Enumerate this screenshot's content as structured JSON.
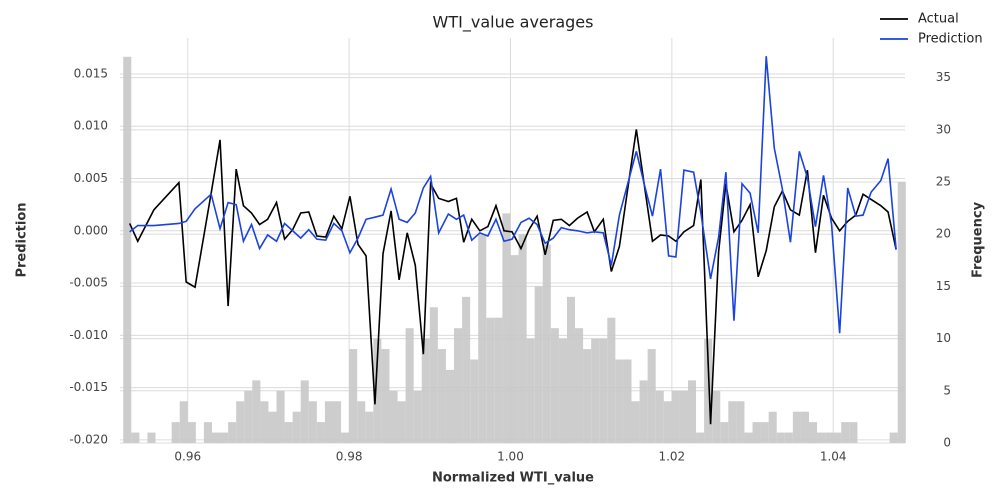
{
  "chart_data": [
    {
      "type": "histogram",
      "ylabel": "Frequency",
      "yaxis_side": "right",
      "color": "#c8c8c8",
      "grid": true,
      "xlim": [
        0.9516,
        1.0489
      ],
      "ylim": [
        0,
        38.8
      ],
      "yticks": [
        0,
        5,
        10,
        15,
        20,
        25,
        30,
        35
      ],
      "bins": [
        0.952,
        0.953,
        0.954,
        0.955,
        0.956,
        0.957,
        0.958,
        0.959,
        0.96,
        0.961,
        0.962,
        0.963,
        0.964,
        0.965,
        0.966,
        0.967,
        0.968,
        0.969,
        0.97,
        0.971,
        0.972,
        0.973,
        0.974,
        0.975,
        0.976,
        0.977,
        0.978,
        0.979,
        0.98,
        0.981,
        0.982,
        0.983,
        0.984,
        0.985,
        0.986,
        0.987,
        0.988,
        0.989,
        0.99,
        0.991,
        0.992,
        0.993,
        0.994,
        0.995,
        0.996,
        0.997,
        0.998,
        0.999,
        1.0,
        1.001,
        1.002,
        1.003,
        1.004,
        1.005,
        1.006,
        1.007,
        1.008,
        1.009,
        1.01,
        1.011,
        1.012,
        1.013,
        1.014,
        1.015,
        1.016,
        1.017,
        1.018,
        1.019,
        1.02,
        1.021,
        1.022,
        1.023,
        1.024,
        1.025,
        1.026,
        1.027,
        1.028,
        1.029,
        1.03,
        1.031,
        1.032,
        1.033,
        1.034,
        1.035,
        1.036,
        1.037,
        1.038,
        1.039,
        1.04,
        1.041,
        1.042,
        1.043,
        1.044,
        1.045,
        1.046,
        1.047,
        1.048,
        1.049
      ],
      "values": [
        37,
        1,
        0,
        1,
        0,
        0,
        2,
        4,
        2,
        0,
        2,
        1,
        1,
        2,
        4,
        5,
        6,
        4,
        3,
        5,
        2,
        3,
        6,
        4,
        2,
        4,
        4,
        1,
        9,
        4,
        3,
        10,
        9,
        5,
        4,
        11,
        5,
        10,
        13,
        9,
        7,
        11,
        14,
        8,
        20,
        12,
        12,
        22,
        18,
        20,
        10,
        15,
        19,
        11,
        10,
        14,
        11,
        9,
        10,
        10,
        12,
        8,
        8,
        4,
        6,
        9,
        5,
        4,
        5,
        5,
        6,
        1,
        10,
        5,
        2,
        4,
        4,
        1,
        2,
        2,
        3,
        1,
        1,
        3,
        3,
        2,
        1,
        1,
        1,
        2,
        2,
        0,
        0,
        0,
        0,
        1,
        25
      ]
    },
    {
      "type": "line",
      "title": "WTI_value averages",
      "xlabel": "Normalized WTI_value",
      "ylabel": "Prediction",
      "grid": true,
      "legend": "upper right",
      "xlim": [
        0.9516,
        1.0489
      ],
      "ylim": [
        -0.0203,
        0.01844
      ],
      "xticks": [
        0.96,
        0.98,
        {
          "value": 1.0,
          "label": "1.00"
        },
        1.02,
        1.04
      ],
      "yticks": [
        {
          "value": -0.02,
          "label": "-0.020"
        },
        {
          "value": -0.015,
          "label": "-0.015"
        },
        {
          "value": -0.01,
          "label": "-0.010"
        },
        {
          "value": -0.005,
          "label": "-0.005"
        },
        {
          "value": 0,
          "label": "0.000"
        },
        {
          "value": 0.005,
          "label": "0.005"
        },
        {
          "value": 0.01,
          "label": "0.010"
        },
        {
          "value": 0.015,
          "label": "0.015"
        }
      ],
      "x": [
        0.9528,
        0.9538,
        0.9558,
        0.9589,
        0.9598,
        0.9609,
        0.9629,
        0.964,
        0.965,
        0.966,
        0.9669,
        0.9679,
        0.9689,
        0.9699,
        0.971,
        0.972,
        0.973,
        0.974,
        0.975,
        0.976,
        0.9771,
        0.9781,
        0.9791,
        0.9801,
        0.9811,
        0.9821,
        0.9832,
        0.9842,
        0.9852,
        0.9862,
        0.9872,
        0.9882,
        0.9892,
        0.9901,
        0.9911,
        0.9923,
        0.9933,
        0.9942,
        0.9952,
        0.9962,
        0.9972,
        0.9982,
        0.9992,
        1.0002,
        1.0013,
        1.0023,
        1.0033,
        1.0043,
        1.0053,
        1.0063,
        1.0073,
        1.0083,
        1.0095,
        1.0104,
        1.0115,
        1.0125,
        1.0135,
        1.0156,
        1.0166,
        1.0176,
        1.0186,
        1.0196,
        1.0205,
        1.0215,
        1.0227,
        1.0236,
        1.0248,
        1.0258,
        1.0267,
        1.0277,
        1.0287,
        1.0297,
        1.0307,
        1.0317,
        1.0327,
        1.0337,
        1.0347,
        1.0358,
        1.0368,
        1.0378,
        1.0388,
        1.0398,
        1.0408,
        1.0418,
        1.0428,
        1.0437,
        1.0447,
        1.0459,
        1.0468,
        1.0478
      ],
      "series": [
        {
          "name": "Actual",
          "color": "#000000",
          "values": [
            0.0007,
            -0.001,
            0.002,
            0.0046,
            -0.0049,
            -0.0054,
            0.0036,
            0.0087,
            -0.0072,
            0.0059,
            0.0024,
            0.0017,
            0.0006,
            0.0011,
            0.0027,
            -0.0008,
            0.0001,
            0.0017,
            0.0018,
            -0.0005,
            -0.0006,
            0.0014,
            0.0002,
            0.0033,
            -0.0013,
            -0.0024,
            -0.0166,
            -0.0022,
            0.0019,
            -0.0047,
            -0.0002,
            -0.0033,
            -0.0118,
            0.0045,
            0.0031,
            0.0028,
            0.0031,
            -0.0011,
            0.0011,
            0,
            0.0004,
            0.0024,
            0,
            -0.0001,
            -0.0017,
            0.0001,
            0.0014,
            -0.0023,
            0.001,
            0.0011,
            0.0005,
            0.0012,
            0.0018,
            -0.0001,
            0.0011,
            -0.0039,
            -0.0015,
            0.0097,
            0.0043,
            -0.001,
            -0.0004,
            -0.0005,
            -0.001,
            -0.0001,
            0.0005,
            0.0049,
            -0.0185,
            -0.002,
            0.0045,
            -0.0001,
            0.001,
            0.0025,
            -0.0044,
            -0.0019,
            0.0023,
            0.0038,
            0.002,
            0.0015,
            0.0058,
            -0.0021,
            0.0034,
            0.0012,
            0,
            0.0009,
            0.0015,
            0.0035,
            0.003,
            0.0024,
            0.0018,
            -0.0018
          ]
        },
        {
          "name": "Prediction",
          "color": "#1a43e0",
          "values": [
            -0.0001,
            0.0005,
            0.0005,
            0.0007,
            0.0009,
            0.0021,
            0.0035,
            0.0002,
            0.0027,
            0.0025,
            -0.001,
            0.0006,
            -0.0017,
            -0.0004,
            -0.001,
            0.0007,
            0,
            -0.0007,
            0.0001,
            -0.0008,
            -0.0009,
            0.0007,
            0,
            -0.0021,
            -0.0007,
            0.0011,
            0.0013,
            0.0015,
            0.004,
            0.0011,
            0.0008,
            0.0017,
            0.0041,
            0.0052,
            -0.0002,
            0.0016,
            0.0011,
            0.0015,
            -0.0009,
            -0.0002,
            -0.0005,
            0.0011,
            -0.001,
            -0.0008,
            0.0008,
            0.0012,
            0.0006,
            -0.0012,
            -0.0007,
            0.0003,
            0.0001,
            0,
            -0.0002,
            -0.0001,
            -0.0002,
            -0.0033,
            0.0015,
            0.0076,
            0.0044,
            0.0014,
            0.0059,
            -0.0024,
            -0.0025,
            0.0058,
            0.0056,
            0.0017,
            -0.0046,
            -0.0006,
            0.0056,
            -0.0086,
            0.0045,
            0.0036,
            -0.0002,
            0.0167,
            0.0079,
            0.004,
            -0.0011,
            0.0076,
            0.0051,
            0.0004,
            0.0053,
            0.0006,
            -0.0098,
            0.0041,
            0.0014,
            0.0015,
            0.0037,
            0.0048,
            0.0069,
            -0.0018
          ]
        }
      ]
    }
  ]
}
